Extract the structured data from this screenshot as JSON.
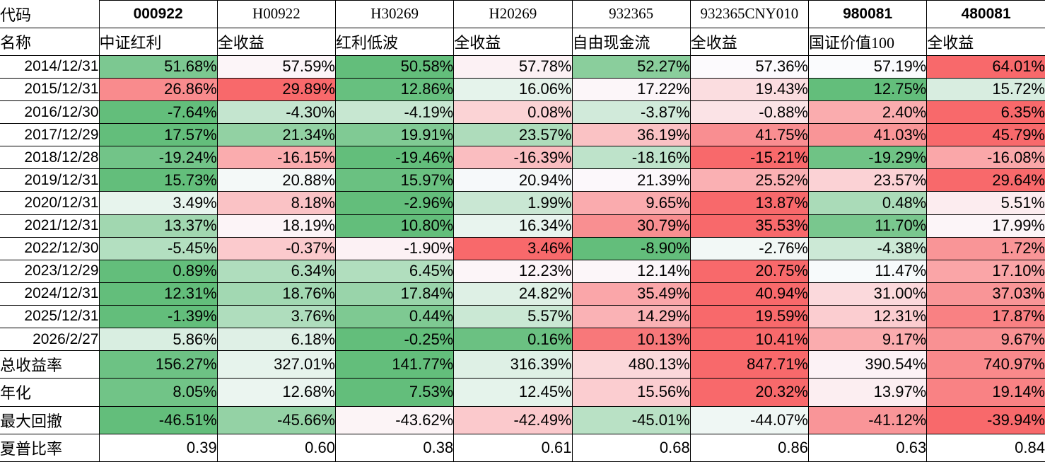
{
  "header": {
    "code_label": "代码",
    "name_label": "名称",
    "columns": [
      {
        "code": "000922",
        "name": "中证红利",
        "flagged": true
      },
      {
        "code": "H00922",
        "name": "全收益",
        "flagged": false
      },
      {
        "code": "H30269",
        "name": "红利低波",
        "flagged": false
      },
      {
        "code": "H20269",
        "name": "全收益",
        "flagged": false
      },
      {
        "code": "932365",
        "name": "自由现金流",
        "flagged": false
      },
      {
        "code": "932365CNY010",
        "name": "全收益",
        "flagged": false
      },
      {
        "code": "980081",
        "name": "国证价值100",
        "flagged": true
      },
      {
        "code": "480081",
        "name": "全收益",
        "flagged": true
      }
    ]
  },
  "rows": [
    {
      "label": "2014/12/31",
      "kind": "date",
      "format": "percent",
      "colored": true,
      "values": [
        51.68,
        57.59,
        50.58,
        57.78,
        52.27,
        57.36,
        57.19,
        64.01
      ]
    },
    {
      "label": "2015/12/31",
      "kind": "date",
      "format": "percent",
      "colored": true,
      "values": [
        26.86,
        29.89,
        12.86,
        16.06,
        17.22,
        19.43,
        12.75,
        15.72
      ]
    },
    {
      "label": "2016/12/30",
      "kind": "date",
      "format": "percent",
      "colored": true,
      "values": [
        -7.64,
        -4.3,
        -4.19,
        0.08,
        -3.87,
        -0.88,
        2.4,
        6.35
      ]
    },
    {
      "label": "2017/12/29",
      "kind": "date",
      "format": "percent",
      "colored": true,
      "values": [
        17.57,
        21.34,
        19.91,
        23.57,
        36.19,
        41.75,
        41.03,
        45.79
      ]
    },
    {
      "label": "2018/12/28",
      "kind": "date",
      "format": "percent",
      "colored": true,
      "values": [
        -19.24,
        -16.15,
        -19.46,
        -16.39,
        -18.16,
        -15.21,
        -19.29,
        -16.08
      ]
    },
    {
      "label": "2019/12/31",
      "kind": "date",
      "format": "percent",
      "colored": true,
      "values": [
        15.73,
        20.88,
        15.97,
        20.94,
        21.39,
        25.52,
        23.57,
        29.64
      ]
    },
    {
      "label": "2020/12/31",
      "kind": "date",
      "format": "percent",
      "colored": true,
      "values": [
        3.49,
        8.18,
        -2.96,
        1.99,
        9.65,
        13.87,
        0.48,
        5.51
      ]
    },
    {
      "label": "2021/12/31",
      "kind": "date",
      "format": "percent",
      "colored": true,
      "values": [
        13.37,
        18.19,
        10.8,
        16.34,
        30.79,
        35.53,
        11.7,
        17.99
      ]
    },
    {
      "label": "2022/12/30",
      "kind": "date",
      "format": "percent",
      "colored": true,
      "values": [
        -5.45,
        -0.37,
        -1.9,
        3.46,
        -8.9,
        -2.76,
        -4.38,
        1.72
      ]
    },
    {
      "label": "2023/12/29",
      "kind": "date",
      "format": "percent",
      "colored": true,
      "values": [
        0.89,
        6.34,
        6.45,
        12.23,
        12.14,
        20.75,
        11.47,
        17.1
      ]
    },
    {
      "label": "2024/12/31",
      "kind": "date",
      "format": "percent",
      "colored": true,
      "values": [
        12.31,
        18.76,
        17.84,
        24.82,
        35.49,
        40.94,
        31.0,
        37.03
      ]
    },
    {
      "label": "2025/12/31",
      "kind": "date",
      "format": "percent",
      "colored": true,
      "values": [
        -1.39,
        3.76,
        0.44,
        5.57,
        14.29,
        19.59,
        12.31,
        17.87
      ]
    },
    {
      "label": "2026/2/27",
      "kind": "date",
      "format": "percent",
      "colored": true,
      "values": [
        5.86,
        6.18,
        -0.25,
        0.16,
        10.13,
        10.41,
        9.17,
        9.67
      ]
    },
    {
      "label": "总收益率",
      "kind": "stat",
      "format": "percent",
      "colored": true,
      "values": [
        156.27,
        327.01,
        141.77,
        316.39,
        480.13,
        847.71,
        390.54,
        740.97
      ]
    },
    {
      "label": "年化",
      "kind": "stat",
      "format": "percent",
      "colored": true,
      "values": [
        8.05,
        12.68,
        7.53,
        12.45,
        15.56,
        20.32,
        13.97,
        19.14
      ]
    },
    {
      "label": "最大回撤",
      "kind": "stat",
      "format": "percent",
      "colored": true,
      "values": [
        -46.51,
        -45.66,
        -43.62,
        -42.49,
        -45.01,
        -44.07,
        -41.12,
        -39.94
      ]
    },
    {
      "label": "夏普比率",
      "kind": "stat",
      "format": "number",
      "colored": false,
      "values": [
        0.39,
        0.6,
        0.38,
        0.61,
        0.68,
        0.86,
        0.63,
        0.84
      ]
    }
  ],
  "colorscale": {
    "min_color": "#63BE7B",
    "mid_color": "#FCFCFF",
    "max_color": "#F8696B",
    "midpoint": "50th percentile per row"
  },
  "grid_color": "#000000",
  "flag_triangle_color": "#1E7B34",
  "flag_icon_meaning": "excel-number-stored-as-text-indicator"
}
